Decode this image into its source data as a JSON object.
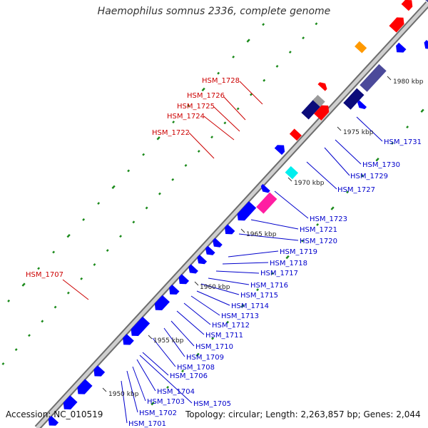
{
  "title": "Haemophilus somnus 2336, complete genome",
  "accession_label": "Accession: NC_010519",
  "summary_label": "Topology: circular; Length: 2,263,857 bp; Genes: 2,044",
  "colors": {
    "backbone_outer": "#6d6d6d",
    "backbone_inner": "#cfcfcf",
    "forward_gene": "#ff0000",
    "reverse_gene": "#0000ff",
    "dark_navy": "#0b0b7a",
    "slate": "#4b4a9a",
    "orange": "#ff9900",
    "gray": "#9a9a9a",
    "cyan": "#00eeee",
    "magenta": "#ff1ea2",
    "dots": "#1a8a1a",
    "label_upper": "#cc0000",
    "label_lower": "#0000cc"
  },
  "scale_ticks": [
    "1950 kbp",
    "1955 kbp",
    "1960 kbp",
    "1965 kbp",
    "1970 kbp",
    "1975 kbp",
    "1980 kbp"
  ],
  "labels_upper": [
    "HSM_1728",
    "HSM_1726",
    "HSM_1725",
    "HSM_1724",
    "HSM_1722",
    "HSM_1707"
  ],
  "labels_lower": [
    "HSM_1731",
    "HSM_1730",
    "HSM_1729",
    "HSM_1727",
    "HSM_1723",
    "HSM_1721",
    "HSM_1720",
    "HSM_1719",
    "HSM_1718",
    "HSM_1717",
    "HSM_1716",
    "HSM_1715",
    "HSM_1714",
    "HSM_1713",
    "HSM_1712",
    "HSM_1711",
    "HSM_1710",
    "HSM_1709",
    "HSM_1708",
    "HSM_1706",
    "HSM_1704",
    "HSM_1705",
    "HSM_1703",
    "HSM_1702",
    "HSM_1701"
  ]
}
